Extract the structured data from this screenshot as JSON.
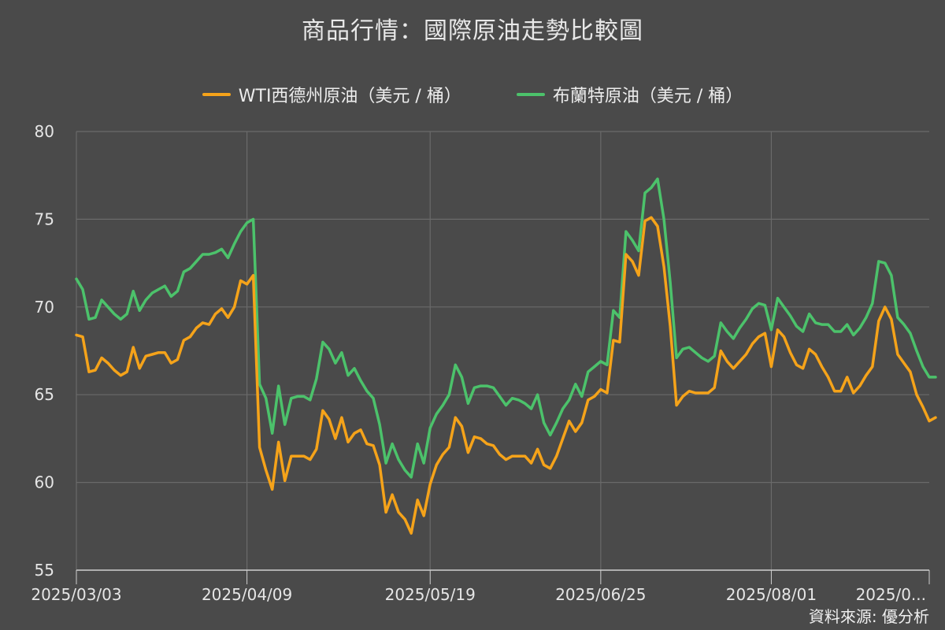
{
  "title": "商品行情：國際原油走勢比較圖",
  "source": "資料來源: 優分析",
  "colors": {
    "wti": "#f5a31a",
    "brent": "#4cc26b",
    "grid": "#6a6a6a",
    "axis": "#cfcfcf"
  },
  "chart_data": {
    "type": "line",
    "title": "商品行情：國際原油走勢比較圖",
    "ylim": [
      55,
      80
    ],
    "y_ticks": [
      55,
      60,
      65,
      70,
      75,
      80
    ],
    "x_tick_labels": [
      "2025/03/03",
      "2025/04/09",
      "2025/05/19",
      "2025/06/25",
      "2025/08/01",
      "2025/0..."
    ],
    "x_tick_index": [
      0,
      27,
      56,
      83,
      110,
      135
    ],
    "x_count": 135,
    "grid": true,
    "legend_position": "top-center",
    "series": [
      {
        "name": "WTI西德州原油（美元 / 桶）",
        "color": "#f5a31a",
        "values": [
          68.4,
          68.3,
          66.3,
          66.4,
          67.1,
          66.8,
          66.4,
          66.1,
          66.3,
          67.7,
          66.5,
          67.2,
          67.3,
          67.4,
          67.4,
          66.8,
          67.0,
          68.1,
          68.3,
          68.8,
          69.1,
          69.0,
          69.6,
          69.9,
          69.4,
          70.0,
          71.5,
          71.3,
          71.8,
          62.0,
          60.7,
          59.6,
          62.3,
          60.1,
          61.5,
          61.5,
          61.5,
          61.3,
          61.9,
          64.1,
          63.6,
          62.5,
          63.7,
          62.3,
          62.8,
          63.0,
          62.2,
          62.1,
          61.0,
          58.3,
          59.3,
          58.3,
          57.9,
          57.1,
          59.0,
          58.1,
          59.9,
          61.0,
          61.6,
          62.0,
          63.7,
          63.2,
          61.7,
          62.6,
          62.5,
          62.2,
          62.1,
          61.6,
          61.3,
          61.5,
          61.5,
          61.5,
          61.1,
          61.9,
          61.0,
          60.8,
          61.5,
          62.5,
          63.5,
          62.9,
          63.4,
          64.7,
          64.9,
          65.3,
          65.1,
          68.1,
          68.0,
          73.0,
          72.6,
          71.8,
          74.9,
          75.1,
          74.6,
          72.3,
          68.9,
          64.4,
          64.9,
          65.2,
          65.1,
          65.1,
          65.1,
          65.4,
          67.5,
          66.9,
          66.5,
          66.9,
          67.3,
          67.9,
          68.3,
          68.5,
          66.6,
          68.7,
          68.3,
          67.4,
          66.7,
          66.5,
          67.6,
          67.3,
          66.6,
          66.0,
          65.2,
          65.2,
          66.0,
          65.1,
          65.5,
          66.1,
          66.6,
          69.2,
          70.0,
          69.3,
          67.3,
          66.8,
          66.3,
          65.0,
          64.3,
          63.5,
          63.7
        ]
      },
      {
        "name": "布蘭特原油（美元 / 桶）",
        "color": "#4cc26b",
        "values": [
          71.6,
          71.0,
          69.3,
          69.4,
          70.4,
          70.0,
          69.6,
          69.3,
          69.6,
          70.9,
          69.8,
          70.4,
          70.8,
          71.0,
          71.2,
          70.6,
          70.9,
          72.0,
          72.2,
          72.6,
          73.0,
          73.0,
          73.1,
          73.3,
          72.8,
          73.6,
          74.3,
          74.8,
          75.0,
          65.6,
          64.8,
          62.8,
          65.5,
          63.3,
          64.8,
          64.9,
          64.9,
          64.7,
          65.9,
          68.0,
          67.6,
          66.8,
          67.4,
          66.1,
          66.5,
          65.8,
          65.2,
          64.8,
          63.3,
          61.1,
          62.2,
          61.3,
          60.7,
          60.3,
          62.2,
          61.1,
          63.1,
          63.9,
          64.4,
          65.0,
          66.7,
          66.0,
          64.5,
          65.4,
          65.5,
          65.5,
          65.4,
          64.9,
          64.4,
          64.8,
          64.7,
          64.5,
          64.2,
          65.0,
          63.4,
          62.7,
          63.4,
          64.2,
          64.7,
          65.6,
          64.9,
          66.3,
          66.6,
          66.9,
          66.7,
          69.8,
          69.4,
          74.3,
          73.8,
          73.2,
          76.5,
          76.8,
          77.3,
          75.0,
          71.4,
          67.1,
          67.6,
          67.7,
          67.4,
          67.1,
          66.9,
          67.2,
          69.1,
          68.6,
          68.2,
          68.8,
          69.3,
          69.9,
          70.2,
          70.1,
          68.7,
          70.5,
          70.0,
          69.5,
          68.9,
          68.6,
          69.6,
          69.1,
          69.0,
          69.0,
          68.6,
          68.6,
          69.0,
          68.4,
          68.8,
          69.4,
          70.2,
          72.6,
          72.5,
          71.8,
          69.4,
          69.0,
          68.5,
          67.5,
          66.6,
          66.0,
          66.0
        ]
      }
    ]
  }
}
